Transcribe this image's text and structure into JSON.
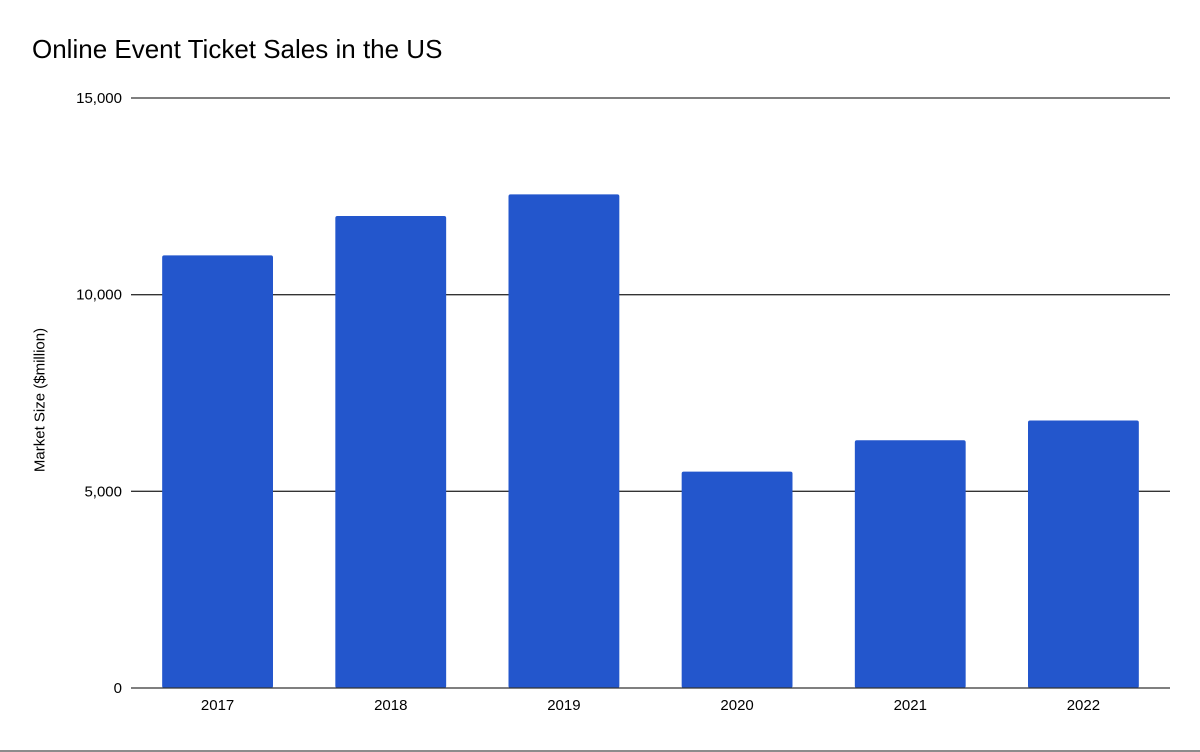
{
  "chart_data": {
    "type": "bar",
    "title": "Online Event Ticket Sales in the US",
    "xlabel": "",
    "ylabel": "Market Size ($million)",
    "categories": [
      "2017",
      "2018",
      "2019",
      "2020",
      "2021",
      "2022"
    ],
    "values": [
      11000,
      12000,
      12550,
      5500,
      6300,
      6800
    ],
    "ylim": [
      0,
      15000
    ],
    "yticks": [
      0,
      5000,
      10000,
      15000
    ],
    "ytick_labels": [
      "0",
      "5,000",
      "10,000",
      "15,000"
    ],
    "grid": true,
    "legend": "none",
    "colors": {
      "bar": "#2356cc",
      "grid": "#333333",
      "axis": "#333333",
      "text": "#000000"
    }
  }
}
